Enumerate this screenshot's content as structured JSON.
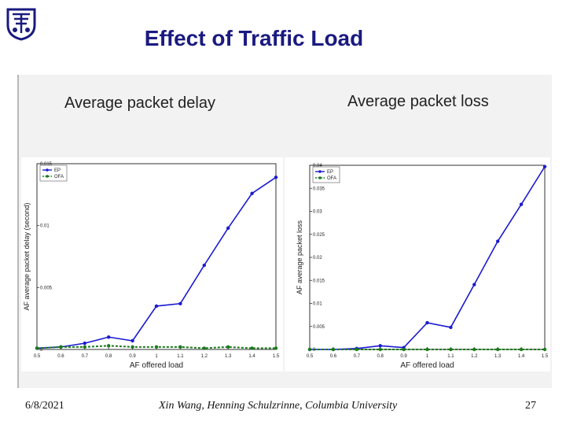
{
  "slide": {
    "title": "Effect of Traffic Load",
    "footer_date": "6/8/2021",
    "footer_center": "Xin Wang, Henning Schulzrinne, Columbia University",
    "page_number": "27",
    "colors": {
      "title": "#1a1a80",
      "ep": "#1a1ad0",
      "ofa": "#1a7a1a"
    }
  },
  "chart_data": [
    {
      "type": "line",
      "subtitle": "Average packet delay",
      "xlabel": "AF offered load",
      "ylabel": "AF average packet delay (second)",
      "x": [
        0.5,
        0.6,
        0.7,
        0.8,
        0.9,
        1.0,
        1.1,
        1.2,
        1.3,
        1.4,
        1.5
      ],
      "x_ticks": [
        "0.5",
        "0.6",
        "0.7",
        "0.8",
        "0.9",
        "1",
        "1.1",
        "1.2",
        "1.3",
        "1.4",
        "1.5"
      ],
      "y_ticks": [
        "0",
        "0.005",
        "0.01",
        "0.015"
      ],
      "ylim": [
        0,
        0.015
      ],
      "xlim": [
        0.5,
        1.5
      ],
      "legend": [
        "EP",
        "OFA"
      ],
      "series": [
        {
          "name": "EP",
          "values": [
            0.0001,
            0.0002,
            0.0005,
            0.001,
            0.0007,
            0.0035,
            0.0037,
            0.0068,
            0.0098,
            0.0126,
            0.0139
          ]
        },
        {
          "name": "OFA",
          "values": [
            0.0001,
            0.0002,
            0.0002,
            0.0003,
            0.0002,
            0.0002,
            0.0002,
            0.0001,
            0.0002,
            0.0001,
            0.0001
          ]
        }
      ]
    },
    {
      "type": "line",
      "subtitle": "Average packet loss",
      "xlabel": "AF offered load",
      "ylabel": "AF average packet loss",
      "x": [
        0.5,
        0.6,
        0.7,
        0.8,
        0.9,
        1.0,
        1.1,
        1.2,
        1.3,
        1.4,
        1.5
      ],
      "x_ticks": [
        "0.5",
        "0.6",
        "0.7",
        "0.8",
        "0.9",
        "1",
        "1.1",
        "1.2",
        "1.3",
        "1.4",
        "1.5"
      ],
      "y_ticks": [
        "0",
        "0.005",
        "0.01",
        "0.015",
        "0.02",
        "0.025",
        "0.03",
        "0.035",
        "0.04"
      ],
      "ylim": [
        0,
        0.04
      ],
      "xlim": [
        0.5,
        1.5
      ],
      "legend": [
        "EP",
        "OFA"
      ],
      "series": [
        {
          "name": "EP",
          "values": [
            0,
            0,
            0.0002,
            0.0008,
            0.0004,
            0.0058,
            0.0048,
            0.0141,
            0.0235,
            0.0315,
            0.0397
          ]
        },
        {
          "name": "OFA",
          "values": [
            0,
            0,
            0,
            0,
            0,
            0,
            0,
            0,
            0,
            0,
            0
          ]
        }
      ]
    }
  ]
}
